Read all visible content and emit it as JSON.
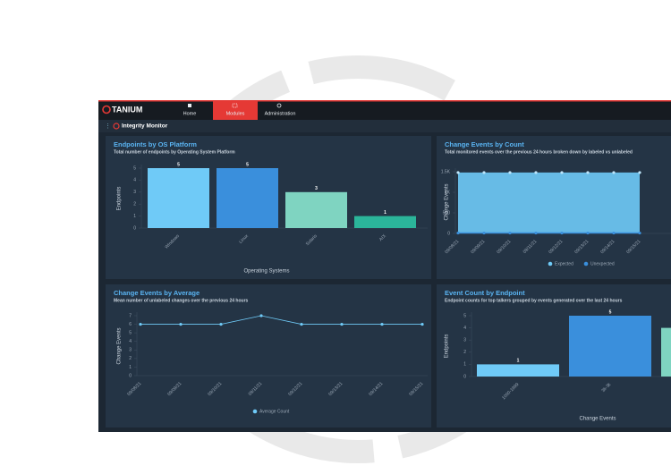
{
  "header": {
    "logo": "TANIUM",
    "nav": [
      "Home",
      "Modules",
      "Administration"
    ]
  },
  "app_title": "Integrity Monitor",
  "chart_data": [
    {
      "type": "bar",
      "title": "Endpoints by OS Platform",
      "subtitle": "Total number of endpoints by Operating System Platform",
      "categories": [
        "Windows",
        "Linux",
        "Solaris",
        "AIX"
      ],
      "values": [
        5,
        5,
        3,
        1
      ],
      "colors": [
        "#6fcaf7",
        "#3a8fdc",
        "#7fd4c1",
        "#2bb59a"
      ],
      "ylim": [
        0,
        5
      ],
      "yticks": [
        0,
        1,
        2,
        3,
        4,
        5
      ],
      "x_label": "Operating Systems",
      "y_label": "Endpoints"
    },
    {
      "type": "area",
      "title": "Change Events by Count",
      "subtitle": "Total monitored events over the previous 24 hours broken down by labeled vs unlabeled",
      "categories": [
        "09/08/21",
        "09/09/21",
        "09/10/21",
        "09/11/21",
        "09/12/21",
        "09/13/21",
        "09/14/21",
        "09/15/21"
      ],
      "series": [
        {
          "name": "Expected",
          "color": "#6fcaf7",
          "values": [
            1480,
            1480,
            1480,
            1480,
            1480,
            1480,
            1480,
            1480
          ]
        },
        {
          "name": "Unexpected",
          "color": "#3a8fdc",
          "values": [
            10,
            10,
            10,
            10,
            10,
            10,
            10,
            10
          ]
        }
      ],
      "ylim": [
        0,
        1500
      ],
      "yticks": [
        0,
        500,
        {
          "value": 1000,
          "label": "1K"
        },
        {
          "value": 1500,
          "label": "1.5K"
        }
      ],
      "y_label": "Change Events"
    },
    {
      "type": "line",
      "title": "Change Events by Average",
      "subtitle": "Mean number of unlabeled changes over the previous 24 hours",
      "categories": [
        "09/08/21",
        "09/09/21",
        "09/10/21",
        "09/11/21",
        "09/12/21",
        "09/13/21",
        "09/14/21",
        "09/15/21"
      ],
      "series": [
        {
          "name": "Average Count",
          "color": "#6fcaf7",
          "values": [
            6,
            6,
            6,
            7,
            6,
            6,
            6,
            6
          ]
        }
      ],
      "ylim": [
        0,
        7
      ],
      "yticks": [
        0,
        1,
        2,
        3,
        4,
        5,
        6,
        7
      ],
      "y_label": "Change Events"
    },
    {
      "type": "bar",
      "title": "Event Count by Endpoint",
      "subtitle": "Endpoint counts for top talkers grouped by events generated over the last 24 hours",
      "categories": [
        "1000-1999",
        "3k-3k",
        null
      ],
      "values": [
        1,
        5,
        4
      ],
      "colors": [
        "#6fcaf7",
        "#3a8fdc",
        "#7fd4c1"
      ],
      "ylim": [
        0,
        5
      ],
      "yticks": [
        0,
        1,
        2,
        3,
        4,
        5
      ],
      "x_label": "Change Events",
      "y_label": "Endpoints"
    }
  ]
}
